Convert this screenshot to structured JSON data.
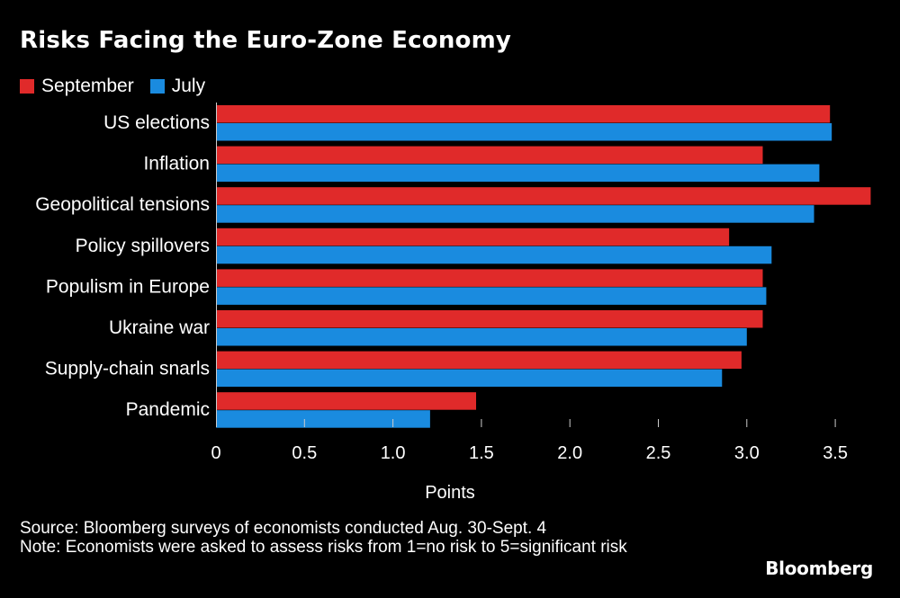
{
  "colors": {
    "background": "#000000",
    "september": "#e02a2a",
    "july": "#1a8bdf",
    "text": "#ffffff",
    "axis": "#cccccc"
  },
  "source": "Source: Bloomberg surveys of economists conducted Aug. 30-Sept. 4",
  "note": "Note: Economists were asked to assess risks from 1=no risk to 5=significant risk",
  "brand": "Bloomberg",
  "chart_data": {
    "type": "bar",
    "orientation": "horizontal",
    "title": "Risks Facing the Euro-Zone Economy",
    "xlabel": "Points",
    "ylabel": "",
    "xlim": [
      0,
      3.75
    ],
    "xticks": [
      "0",
      "0.5",
      "1.0",
      "1.5",
      "2.0",
      "2.5",
      "3.0",
      "3.5"
    ],
    "xtick_values": [
      0,
      0.5,
      1.0,
      1.5,
      2.0,
      2.5,
      3.0,
      3.5
    ],
    "categories": [
      "US elections",
      "Inflation",
      "Geopolitical tensions",
      "Policy spillovers",
      "Populism in Europe",
      "Ukraine war",
      "Supply-chain snarls",
      "Pandemic"
    ],
    "series": [
      {
        "name": "September",
        "color": "#e02a2a",
        "values": [
          3.47,
          3.09,
          3.7,
          2.9,
          3.09,
          3.09,
          2.97,
          1.47
        ]
      },
      {
        "name": "July",
        "color": "#1a8bdf",
        "values": [
          3.48,
          3.41,
          3.38,
          3.14,
          3.11,
          3.0,
          2.86,
          1.21
        ]
      }
    ],
    "legend_position": "top-left"
  }
}
